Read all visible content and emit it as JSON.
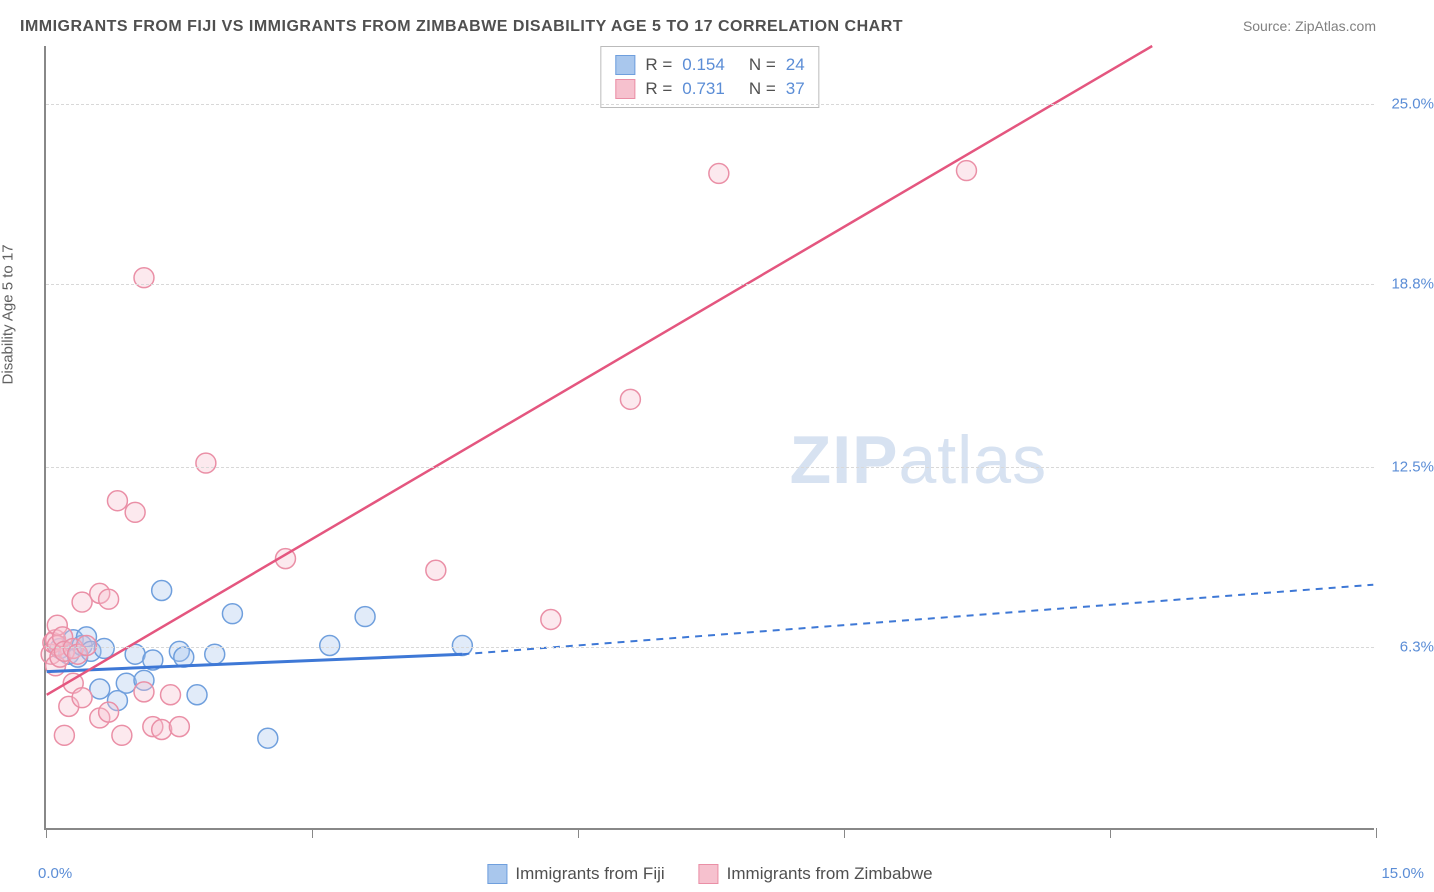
{
  "title": "IMMIGRANTS FROM FIJI VS IMMIGRANTS FROM ZIMBABWE DISABILITY AGE 5 TO 17 CORRELATION CHART",
  "source": "Source: ZipAtlas.com",
  "ylabel": "Disability Age 5 to 17",
  "watermark_bold": "ZIP",
  "watermark_rest": "atlas",
  "chart": {
    "type": "scatter",
    "xlim": [
      0,
      15.0
    ],
    "ylim": [
      0,
      27.0
    ],
    "x_ticks": [
      0,
      3,
      6,
      9,
      12,
      15
    ],
    "x_tick_labels_shown": {
      "0": "0.0%",
      "15": "15.0%"
    },
    "y_gridlines": [
      6.3,
      12.5,
      18.8,
      25.0
    ],
    "y_tick_labels": [
      "6.3%",
      "12.5%",
      "18.8%",
      "25.0%"
    ],
    "grid_color": "#d8d8d8",
    "axis_color": "#888888",
    "background_color": "#ffffff",
    "tick_label_color": "#5b8dd6",
    "marker_radius": 10,
    "series": [
      {
        "name": "Immigrants from Fiji",
        "color_fill": "#a9c7ed",
        "color_stroke": "#6f9fdd",
        "r_value": "0.154",
        "n_value": "24",
        "regression": {
          "solid_from": [
            0.0,
            5.4
          ],
          "solid_to": [
            4.7,
            6.0
          ],
          "dashed_to": [
            15.0,
            8.4
          ],
          "color": "#3e78d6",
          "width": 3,
          "dash": "7,6"
        },
        "points": [
          [
            0.15,
            6.2
          ],
          [
            0.25,
            6.0
          ],
          [
            0.3,
            6.5
          ],
          [
            0.35,
            5.9
          ],
          [
            0.4,
            6.3
          ],
          [
            0.45,
            6.6
          ],
          [
            0.5,
            6.1
          ],
          [
            0.6,
            4.8
          ],
          [
            0.65,
            6.2
          ],
          [
            0.8,
            4.4
          ],
          [
            0.9,
            5.0
          ],
          [
            1.0,
            6.0
          ],
          [
            1.1,
            5.1
          ],
          [
            1.2,
            5.8
          ],
          [
            1.3,
            8.2
          ],
          [
            1.5,
            6.1
          ],
          [
            1.55,
            5.9
          ],
          [
            1.7,
            4.6
          ],
          [
            1.9,
            6.0
          ],
          [
            2.1,
            7.4
          ],
          [
            2.5,
            3.1
          ],
          [
            3.2,
            6.3
          ],
          [
            3.6,
            7.3
          ],
          [
            4.7,
            6.3
          ]
        ]
      },
      {
        "name": "Immigrants from Zimbabwe",
        "color_fill": "#f6c1ce",
        "color_stroke": "#ea8fa6",
        "r_value": "0.731",
        "n_value": "37",
        "regression": {
          "solid_from": [
            0.0,
            4.6
          ],
          "solid_to": [
            12.5,
            27.0
          ],
          "color": "#e4567f",
          "width": 2.5
        },
        "points": [
          [
            0.05,
            6.0
          ],
          [
            0.07,
            6.4
          ],
          [
            0.1,
            5.6
          ],
          [
            0.1,
            6.5
          ],
          [
            0.12,
            6.3
          ],
          [
            0.12,
            7.0
          ],
          [
            0.15,
            5.9
          ],
          [
            0.18,
            6.6
          ],
          [
            0.2,
            6.1
          ],
          [
            0.2,
            3.2
          ],
          [
            0.25,
            4.2
          ],
          [
            0.3,
            6.2
          ],
          [
            0.3,
            5.0
          ],
          [
            0.35,
            6.0
          ],
          [
            0.4,
            4.5
          ],
          [
            0.4,
            7.8
          ],
          [
            0.45,
            6.3
          ],
          [
            0.6,
            8.1
          ],
          [
            0.6,
            3.8
          ],
          [
            0.7,
            4.0
          ],
          [
            0.7,
            7.9
          ],
          [
            0.8,
            11.3
          ],
          [
            0.85,
            3.2
          ],
          [
            1.0,
            10.9
          ],
          [
            1.1,
            4.7
          ],
          [
            1.1,
            19.0
          ],
          [
            1.2,
            3.5
          ],
          [
            1.3,
            3.4
          ],
          [
            1.4,
            4.6
          ],
          [
            1.5,
            3.5
          ],
          [
            1.8,
            12.6
          ],
          [
            2.7,
            9.3
          ],
          [
            4.4,
            8.9
          ],
          [
            5.7,
            7.2
          ],
          [
            6.6,
            14.8
          ],
          [
            7.6,
            22.6
          ],
          [
            10.4,
            22.7
          ]
        ]
      }
    ]
  },
  "legend_bottom": [
    {
      "label": "Immigrants from Fiji",
      "fill": "#a9c7ed",
      "stroke": "#6f9fdd"
    },
    {
      "label": "Immigrants from Zimbabwe",
      "fill": "#f6c1ce",
      "stroke": "#ea8fa6"
    }
  ]
}
